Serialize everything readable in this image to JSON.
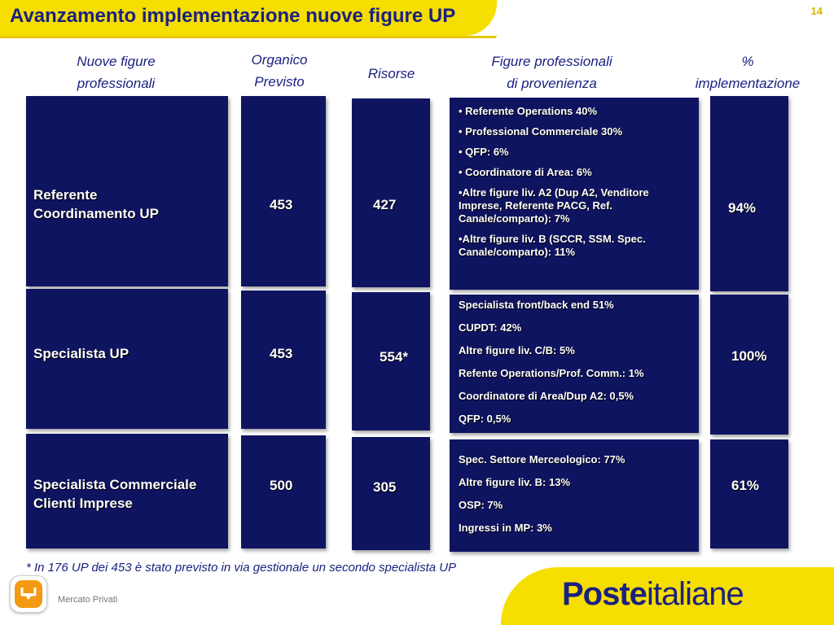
{
  "header": {
    "title": "Avanzamento implementazione nuove figure UP",
    "page_number": "14"
  },
  "columns": {
    "nuove_figure_1": "Nuove figure",
    "nuove_figure_2": "professionali",
    "organico_1": "Organico",
    "organico_2": "Previsto",
    "risorse": "Risorse",
    "provenienza_1": "Figure professionali",
    "provenienza_2": "di provenienza",
    "perc_1": "%",
    "perc_2": "implementazione"
  },
  "rows": [
    {
      "figure_1": "Referente",
      "figure_2": "Coordinamento UP",
      "organico": "453",
      "risorse": "427",
      "provenienza": [
        "• Referente Operations 40%",
        "• Professional Commerciale 30%",
        "• QFP: 6%",
        "• Coordinatore di Area: 6%",
        "•Altre figure liv. A2 (Dup A2, Venditore Imprese, Referente PACG, Ref. Canale/comparto): 7%",
        "•Altre figure liv. B (SCCR, SSM. Spec. Canale/comparto): 11%"
      ],
      "implementazione": "94%"
    },
    {
      "figure_1": "Specialista UP",
      "figure_2": "",
      "organico": "453",
      "risorse": "554*",
      "provenienza": [
        "Specialista front/back end  51%",
        "CUPDT:  42%",
        "Altre figure liv. C/B: 5%",
        "Refente Operations/Prof. Comm.: 1%",
        "Coordinatore di Area/Dup A2: 0,5%",
        "QFP: 0,5%"
      ],
      "implementazione": "100%"
    },
    {
      "figure_1": "Specialista Commerciale",
      "figure_2": "Clienti Imprese",
      "organico": "500",
      "risorse": "305",
      "provenienza": [
        "Spec. Settore Merceologico: 77%",
        "Altre figure liv. B: 13%",
        "OSP: 7%",
        "Ingressi in MP: 3%"
      ],
      "implementazione": "61%"
    }
  ],
  "footnote": "* In 176 UP dei 453  è stato previsto in via gestionale un  secondo specialista UP",
  "footer": {
    "label": "Mercato Privati",
    "logo_bold": "Poste",
    "logo_regular": "italiane",
    "home_icon": "down-arrow-icon"
  },
  "colors": {
    "brand_yellow": "#f5de00",
    "brand_blue": "#1b2180",
    "block_navy": "#0f1461",
    "home_orange": "#f39a12"
  }
}
